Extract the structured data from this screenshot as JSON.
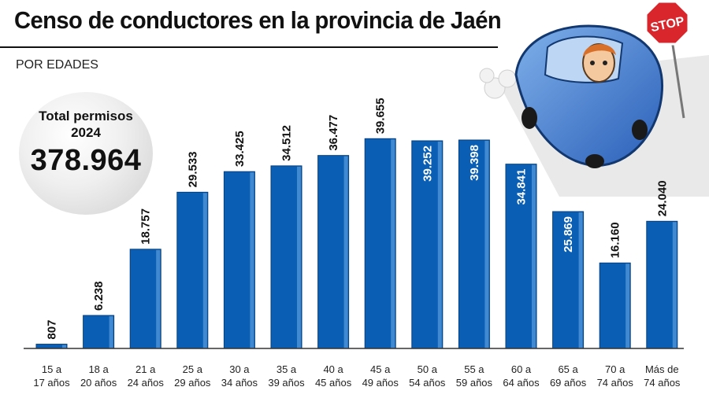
{
  "header": {
    "title": "Censo de conductores en la provincia de Jaén",
    "subtitle": "POR EDADES"
  },
  "total": {
    "label": "Total permisos\n2024",
    "value": "378.964"
  },
  "illustration": {
    "sign_text": "STOP",
    "icons": [
      "stop-sign-icon",
      "car-icon",
      "driver-icon"
    ]
  },
  "colors": {
    "bar": "#0a5fb4",
    "bar_light": "#4f95d8",
    "bar_dark": "#063f7d",
    "baseline": "#333333"
  },
  "chart_data": {
    "type": "bar",
    "title": "Censo de conductores en la provincia de Jaén",
    "subtitle": "POR EDADES",
    "categories": [
      [
        "15 a",
        "17 años"
      ],
      [
        "18 a",
        "20 años"
      ],
      [
        "21 a",
        "24 años"
      ],
      [
        "25 a",
        "29 años"
      ],
      [
        "30 a",
        "34 años"
      ],
      [
        "35 a",
        "39 años"
      ],
      [
        "40 a",
        "45 años"
      ],
      [
        "45 a",
        "49 años"
      ],
      [
        "50 a",
        "54 años"
      ],
      [
        "55 a",
        "59 años"
      ],
      [
        "60 a",
        "64 años"
      ],
      [
        "65 a",
        "69 años"
      ],
      [
        "70 a",
        "74 años"
      ],
      [
        "Más de",
        "74 años"
      ]
    ],
    "values": [
      807,
      6238,
      18757,
      29533,
      33425,
      34512,
      36477,
      39655,
      39252,
      39398,
      34841,
      25869,
      16160,
      24040
    ],
    "value_labels": [
      "807",
      "6.238",
      "18.757",
      "29.533",
      "33.425",
      "34.512",
      "36.477",
      "39.655",
      "39.252",
      "39.398",
      "34.841",
      "25.869",
      "16.160",
      "24.040"
    ],
    "labels_inside": [
      false,
      false,
      false,
      false,
      false,
      false,
      false,
      false,
      true,
      true,
      true,
      true,
      false,
      false
    ],
    "ylim": [
      0,
      39400
    ],
    "grid": false,
    "legend": "none"
  }
}
